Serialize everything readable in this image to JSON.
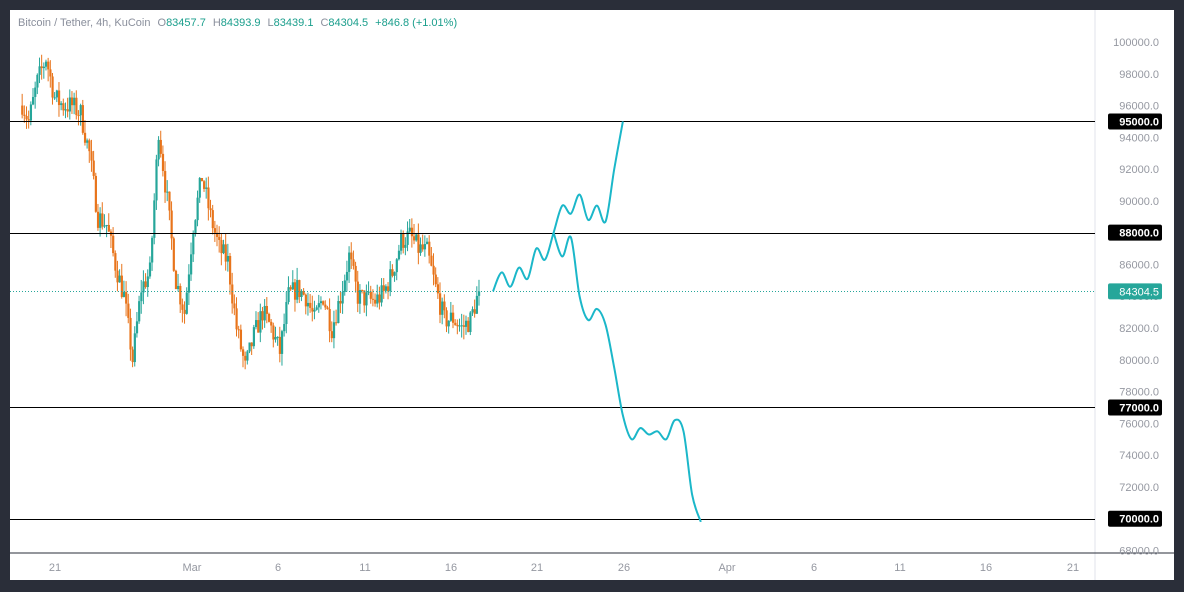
{
  "legend": {
    "symbol": "Bitcoin / Tether, 4h, KuCoin",
    "open_label": "O",
    "open": "83457.7",
    "high_label": "H",
    "high": "84393.9",
    "low_label": "L",
    "low": "83439.1",
    "close_label": "C",
    "close": "84304.5",
    "change": "+846.8 (+1.01%)"
  },
  "colors": {
    "up": "#26a69a",
    "down": "#e8741b",
    "projection": "#1bb7c9",
    "level_line": "#000000",
    "price_line": "#26a69a",
    "axis_text": "#9598a1"
  },
  "chart_data": {
    "type": "candlestick",
    "timeframe": "4h",
    "x_ticks": [
      "21",
      "Mar",
      "6",
      "11",
      "16",
      "21",
      "26",
      "Apr",
      "6",
      "11",
      "16",
      "21"
    ],
    "y_ticks": [
      "100000.0",
      "98000.0",
      "96000.0",
      "94000.0",
      "92000.0",
      "90000.0",
      "88000.0",
      "86000.0",
      "84000.0",
      "82000.0",
      "80000.0",
      "78000.0",
      "76000.0",
      "74000.0",
      "72000.0",
      "70000.0",
      "68000.0"
    ],
    "ylim": [
      67000,
      101500
    ],
    "last_price": "84304.5",
    "horizontal_levels": [
      {
        "value": 95000,
        "label": "95000.0"
      },
      {
        "value": 88000,
        "label": "88000.0"
      },
      {
        "value": 77000,
        "label": "77000.0"
      },
      {
        "value": 70000,
        "label": "70000.0"
      }
    ],
    "price_path_approx": [
      {
        "day": 0,
        "price": 96500
      },
      {
        "day": 1,
        "price": 95000
      },
      {
        "day": 2,
        "price": 97500
      },
      {
        "day": 3,
        "price": 99000
      },
      {
        "day": 4,
        "price": 96500
      },
      {
        "day": 5,
        "price": 96000
      },
      {
        "day": 6,
        "price": 96000
      },
      {
        "day": 7,
        "price": 95500
      },
      {
        "day": 8,
        "price": 93000
      },
      {
        "day": 9,
        "price": 89000
      },
      {
        "day": 10,
        "price": 88500
      },
      {
        "day": 11,
        "price": 86000
      },
      {
        "day": 12,
        "price": 84000
      },
      {
        "day": 13,
        "price": 80000
      },
      {
        "day": 14,
        "price": 84500
      },
      {
        "day": 15,
        "price": 85500
      },
      {
        "day": 16,
        "price": 94500
      },
      {
        "day": 17,
        "price": 90000
      },
      {
        "day": 18,
        "price": 85000
      },
      {
        "day": 19,
        "price": 83000
      },
      {
        "day": 20,
        "price": 88500
      },
      {
        "day": 21,
        "price": 91500
      },
      {
        "day": 22,
        "price": 89000
      },
      {
        "day": 23,
        "price": 87000
      },
      {
        "day": 24,
        "price": 86200
      },
      {
        "day": 25,
        "price": 82000
      },
      {
        "day": 26,
        "price": 79500
      },
      {
        "day": 27,
        "price": 81500
      },
      {
        "day": 28,
        "price": 83000
      },
      {
        "day": 29,
        "price": 82000
      },
      {
        "day": 30,
        "price": 80500
      },
      {
        "day": 31,
        "price": 84000
      },
      {
        "day": 32,
        "price": 84500
      },
      {
        "day": 33,
        "price": 84000
      },
      {
        "day": 34,
        "price": 82500
      },
      {
        "day": 35,
        "price": 84000
      },
      {
        "day": 36,
        "price": 82000
      },
      {
        "day": 37,
        "price": 84000
      },
      {
        "day": 38,
        "price": 86500
      },
      {
        "day": 39,
        "price": 84000
      },
      {
        "day": 40,
        "price": 83800
      },
      {
        "day": 41,
        "price": 83700
      },
      {
        "day": 42,
        "price": 84200
      },
      {
        "day": 43,
        "price": 85500
      },
      {
        "day": 44,
        "price": 87500
      },
      {
        "day": 45,
        "price": 87800
      },
      {
        "day": 46,
        "price": 87000
      },
      {
        "day": 47,
        "price": 86800
      },
      {
        "day": 48,
        "price": 84500
      },
      {
        "day": 49,
        "price": 82500
      },
      {
        "day": 50,
        "price": 82600
      },
      {
        "day": 51,
        "price": 82000
      },
      {
        "day": 52,
        "price": 82500
      },
      {
        "day": 53,
        "price": 84300
      }
    ],
    "projection_up_approx": [
      {
        "day": 53,
        "price": 84304
      },
      {
        "day": 54,
        "price": 85500
      },
      {
        "day": 55,
        "price": 84600
      },
      {
        "day": 56,
        "price": 85800
      },
      {
        "day": 57,
        "price": 85100
      },
      {
        "day": 58,
        "price": 87000
      },
      {
        "day": 59,
        "price": 86300
      },
      {
        "day": 60,
        "price": 88000
      },
      {
        "day": 61,
        "price": 89700
      },
      {
        "day": 62,
        "price": 89200
      },
      {
        "day": 63,
        "price": 90400
      },
      {
        "day": 64,
        "price": 88800
      },
      {
        "day": 65,
        "price": 89700
      },
      {
        "day": 66,
        "price": 88700
      },
      {
        "day": 67,
        "price": 92000
      },
      {
        "day": 68,
        "price": 95000
      }
    ],
    "projection_down_approx": [
      {
        "day": 60,
        "price": 88000
      },
      {
        "day": 61,
        "price": 86500
      },
      {
        "day": 62,
        "price": 87700
      },
      {
        "day": 63,
        "price": 84000
      },
      {
        "day": 64,
        "price": 82500
      },
      {
        "day": 65,
        "price": 83200
      },
      {
        "day": 66,
        "price": 82200
      },
      {
        "day": 67,
        "price": 79500
      },
      {
        "day": 68,
        "price": 76500
      },
      {
        "day": 69,
        "price": 75000
      },
      {
        "day": 70,
        "price": 75700
      },
      {
        "day": 71,
        "price": 75300
      },
      {
        "day": 72,
        "price": 75500
      },
      {
        "day": 73,
        "price": 75000
      },
      {
        "day": 74,
        "price": 76200
      },
      {
        "day": 75,
        "price": 75500
      },
      {
        "day": 76,
        "price": 71500
      },
      {
        "day": 77,
        "price": 69800
      }
    ]
  }
}
